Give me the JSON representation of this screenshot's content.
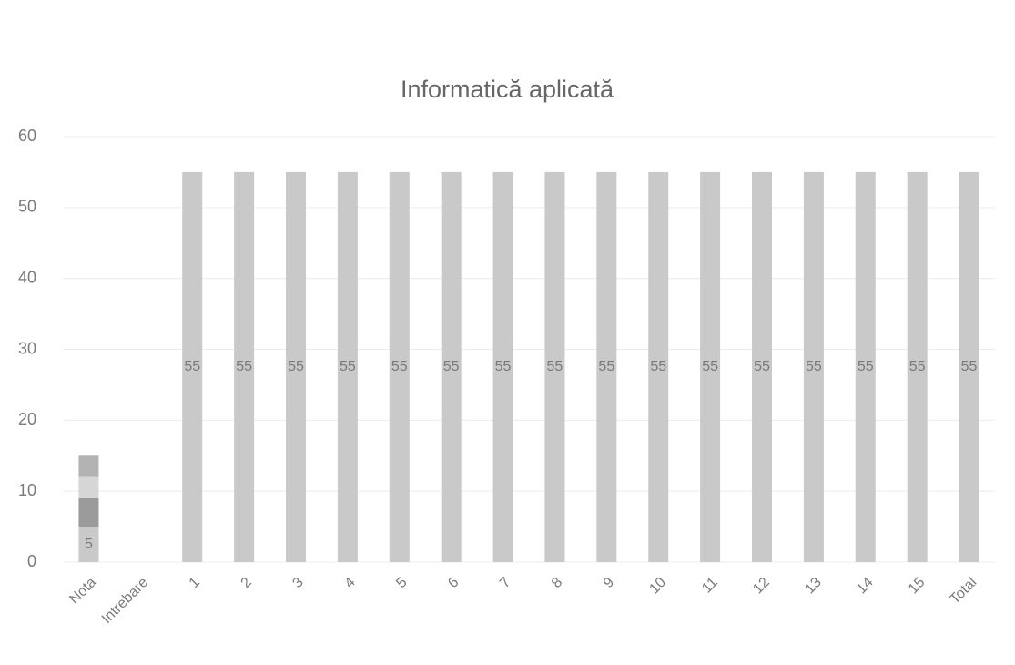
{
  "chart_data": {
    "type": "stacked_bar",
    "title": "Informatică aplicată",
    "categories": [
      "Nota",
      "Intrebare",
      "1",
      "2",
      "3",
      "4",
      "5",
      "6",
      "7",
      "8",
      "9",
      "10",
      "11",
      "12",
      "13",
      "14",
      "15",
      "Total"
    ],
    "series": [
      {
        "name": null,
        "color": "#c9c9c9",
        "data_labels": true,
        "values": [
          5,
          null,
          55,
          55,
          55,
          55,
          55,
          55,
          55,
          55,
          55,
          55,
          55,
          55,
          55,
          55,
          55,
          55
        ]
      },
      {
        "name": null,
        "color": "#9b9b9b",
        "data_labels": false,
        "values": [
          4,
          null,
          null,
          null,
          null,
          null,
          null,
          null,
          null,
          null,
          null,
          null,
          null,
          null,
          null,
          null,
          null,
          null
        ]
      },
      {
        "name": null,
        "color": "#d6d6d6",
        "data_labels": false,
        "values": [
          3,
          null,
          null,
          null,
          null,
          null,
          null,
          null,
          null,
          null,
          null,
          null,
          null,
          null,
          null,
          null,
          null,
          null
        ]
      },
      {
        "name": null,
        "color": "#b3b3b3",
        "data_labels": false,
        "values": [
          3,
          null,
          null,
          null,
          null,
          null,
          null,
          null,
          null,
          null,
          null,
          null,
          null,
          null,
          null,
          null,
          null,
          null
        ]
      }
    ],
    "ylim": [
      0,
      60
    ],
    "yticks": [
      0,
      10,
      20,
      30,
      40,
      50,
      60
    ],
    "grid": true
  }
}
